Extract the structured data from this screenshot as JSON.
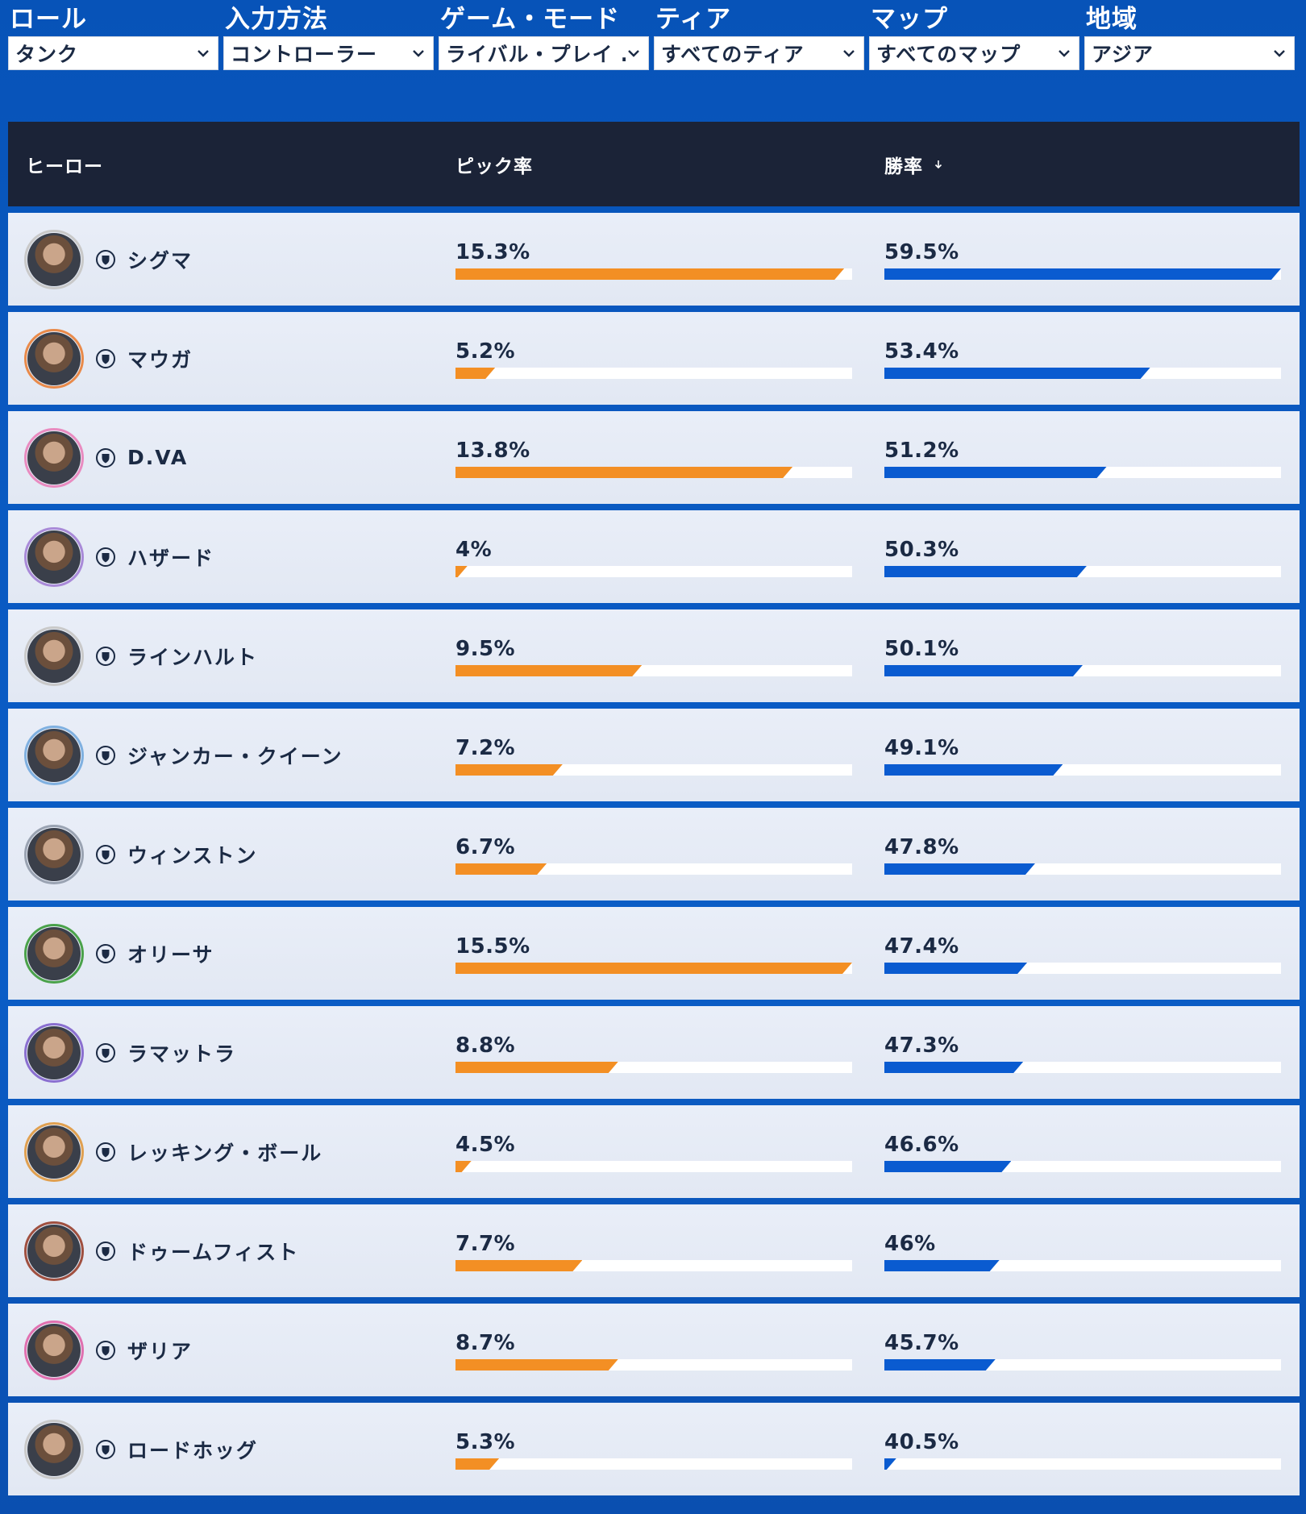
{
  "filters": [
    {
      "label": "ロール",
      "value": "タンク"
    },
    {
      "label": "入力方法",
      "value": "コントローラー"
    },
    {
      "label": "ゲーム・モード",
      "value": "ライバル・プレイ …"
    },
    {
      "label": "ティア",
      "value": "すべてのティア"
    },
    {
      "label": "マップ",
      "value": "すべてのマップ"
    },
    {
      "label": "地域",
      "value": "アジア"
    }
  ],
  "table": {
    "headers": {
      "hero": "ヒーロー",
      "pick_rate": "ピック率",
      "win_rate": "勝率"
    },
    "rows": [
      {
        "hero": "シグマ",
        "pick_rate": "15.3%",
        "win_rate": "59.5%",
        "pick_fill": 0.98,
        "win_fill": 1.0,
        "ring": "#c9c9c9"
      },
      {
        "hero": "マウガ",
        "pick_rate": "5.2%",
        "win_rate": "53.4%",
        "pick_fill": 0.1,
        "win_fill": 0.67,
        "ring": "#e98a4a"
      },
      {
        "hero": "D.VA",
        "pick_rate": "13.8%",
        "win_rate": "51.2%",
        "pick_fill": 0.85,
        "win_fill": 0.56,
        "ring": "#e98bc0"
      },
      {
        "hero": "ハザード",
        "pick_rate": "4%",
        "win_rate": "50.3%",
        "pick_fill": 0.03,
        "win_fill": 0.51,
        "ring": "#a98ad8"
      },
      {
        "hero": "ラインハルト",
        "pick_rate": "9.5%",
        "win_rate": "50.1%",
        "pick_fill": 0.47,
        "win_fill": 0.5,
        "ring": "#c9c9c9"
      },
      {
        "hero": "ジャンカー・クイーン",
        "pick_rate": "7.2%",
        "win_rate": "49.1%",
        "pick_fill": 0.27,
        "win_fill": 0.45,
        "ring": "#7fb0e0"
      },
      {
        "hero": "ウィンストン",
        "pick_rate": "6.7%",
        "win_rate": "47.8%",
        "pick_fill": 0.23,
        "win_fill": 0.38,
        "ring": "#9aa3b2"
      },
      {
        "hero": "オリーサ",
        "pick_rate": "15.5%",
        "win_rate": "47.4%",
        "pick_fill": 1.0,
        "win_fill": 0.36,
        "ring": "#4aa24a"
      },
      {
        "hero": "ラマットラ",
        "pick_rate": "8.8%",
        "win_rate": "47.3%",
        "pick_fill": 0.41,
        "win_fill": 0.35,
        "ring": "#8a6fd0"
      },
      {
        "hero": "レッキング・ボール",
        "pick_rate": "4.5%",
        "win_rate": "46.6%",
        "pick_fill": 0.04,
        "win_fill": 0.32,
        "ring": "#e0a050"
      },
      {
        "hero": "ドゥームフィスト",
        "pick_rate": "7.7%",
        "win_rate": "46%",
        "pick_fill": 0.32,
        "win_fill": 0.29,
        "ring": "#a05040"
      },
      {
        "hero": "ザリア",
        "pick_rate": "8.7%",
        "win_rate": "45.7%",
        "pick_fill": 0.41,
        "win_fill": 0.28,
        "ring": "#e070b0"
      },
      {
        "hero": "ロードホッグ",
        "pick_rate": "5.3%",
        "win_rate": "40.5%",
        "pick_fill": 0.11,
        "win_fill": 0.03,
        "ring": "#c9c9c9"
      }
    ]
  }
}
